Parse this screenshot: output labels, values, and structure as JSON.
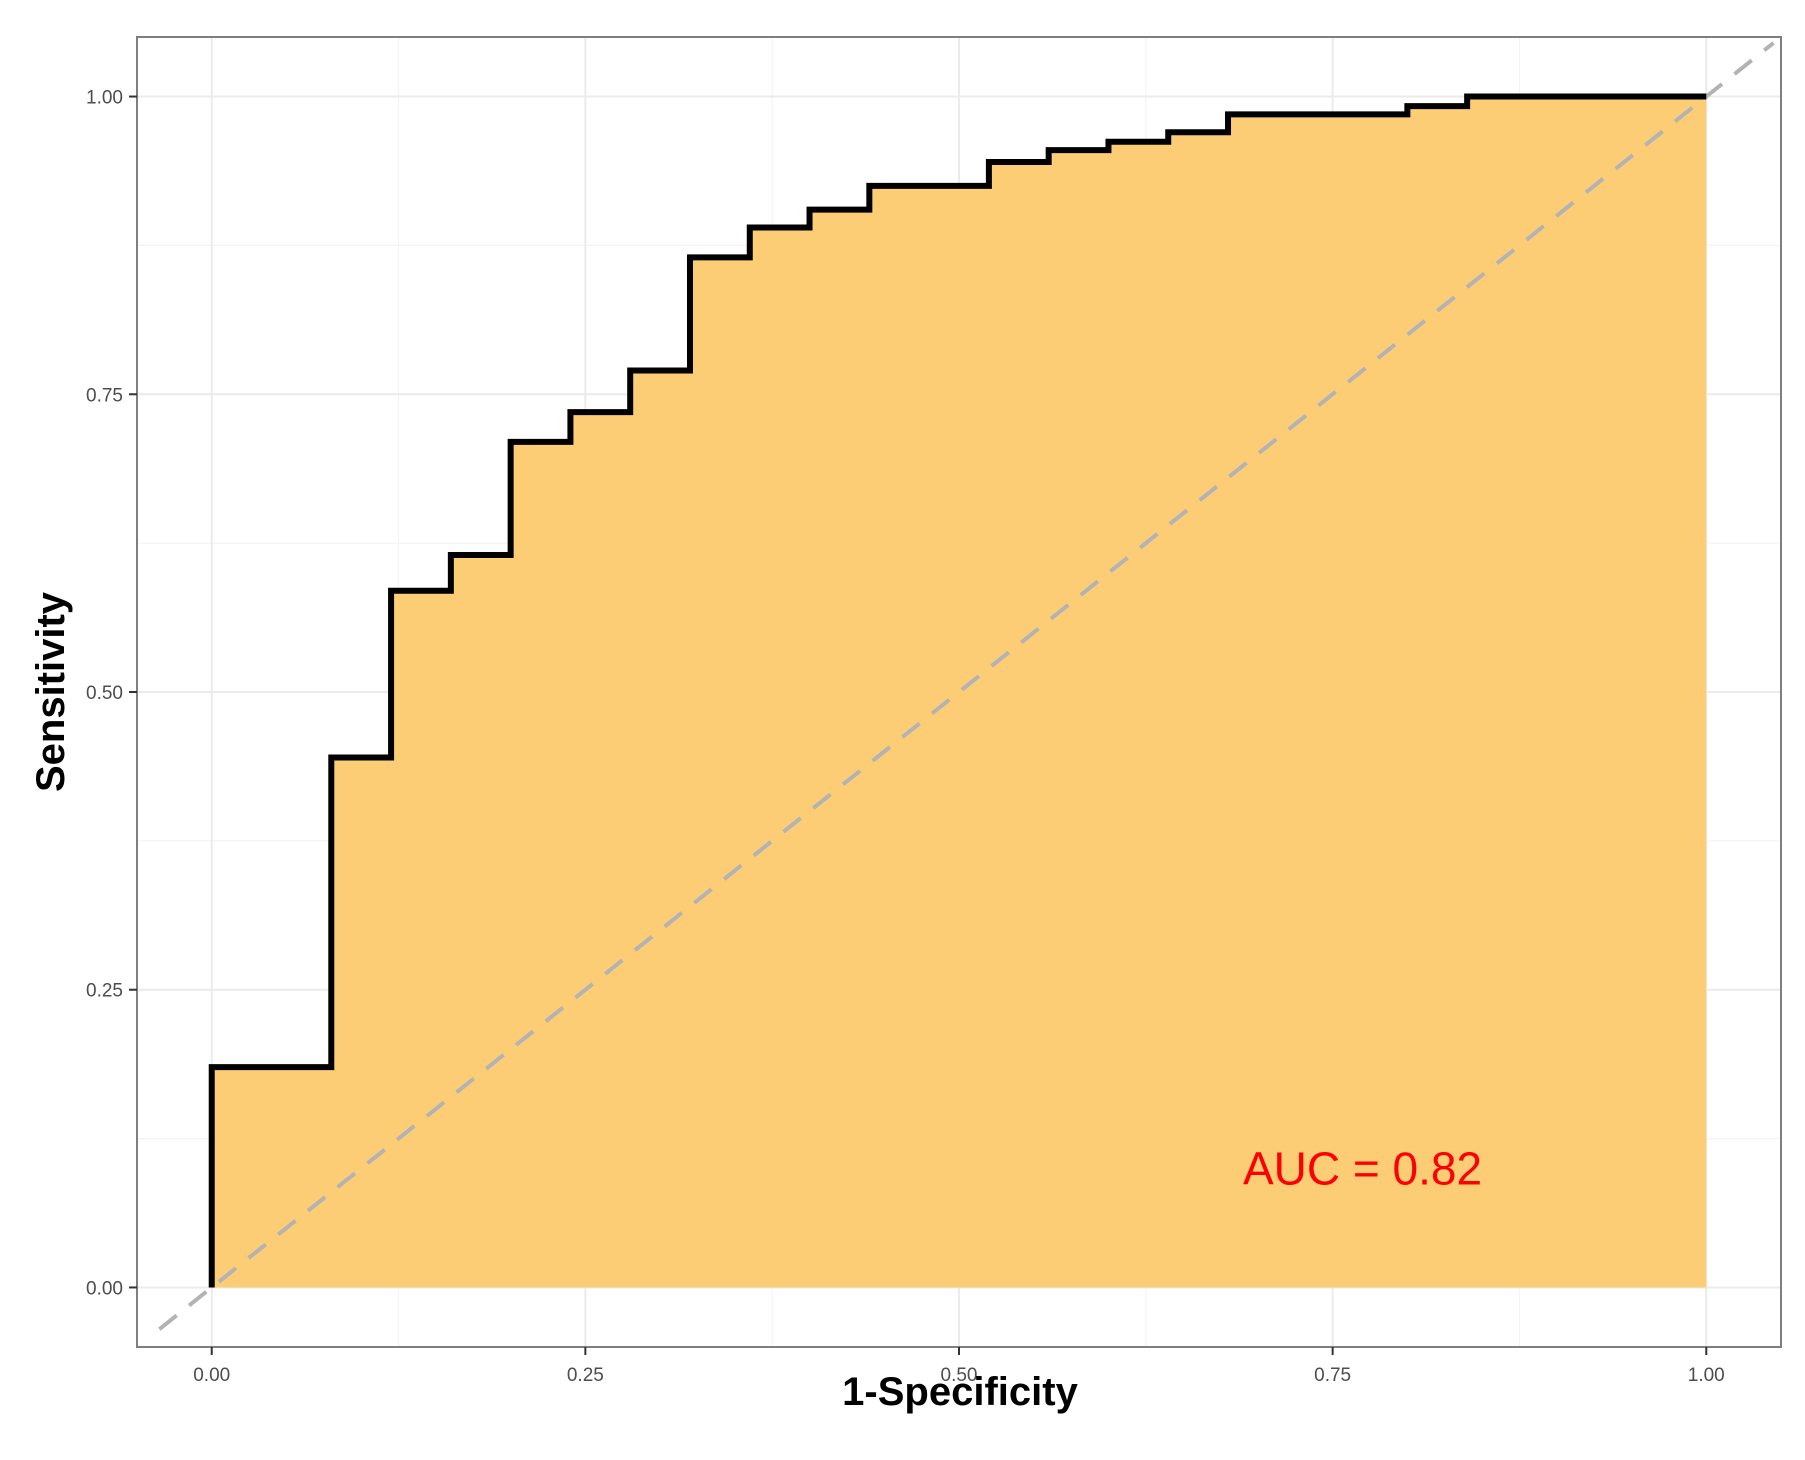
{
  "chart_data": {
    "type": "line",
    "title": "",
    "xlabel": "1-Specificity",
    "ylabel": "Sensitivity",
    "xlim": [
      -0.05,
      1.05
    ],
    "ylim": [
      -0.05,
      1.05
    ],
    "x_ticks": [
      0.0,
      0.25,
      0.5,
      0.75,
      1.0
    ],
    "x_tick_labels": [
      "0.00",
      "0.25",
      "0.50",
      "0.75",
      "1.00"
    ],
    "y_ticks": [
      0.0,
      0.25,
      0.5,
      0.75,
      1.0
    ],
    "y_tick_labels": [
      "0.00",
      "0.25",
      "0.50",
      "0.75",
      "1.00"
    ],
    "grid": true,
    "legend": "none",
    "series": [
      {
        "kind": "step",
        "fill": "area",
        "x": [
          0.0,
          0.0,
          0.08,
          0.08,
          0.12,
          0.12,
          0.16,
          0.16,
          0.2,
          0.2,
          0.24,
          0.24,
          0.28,
          0.28,
          0.32,
          0.32,
          0.36,
          0.36,
          0.4,
          0.4,
          0.44,
          0.44,
          0.52,
          0.52,
          0.56,
          0.56,
          0.6,
          0.6,
          0.64,
          0.64,
          0.68,
          0.68,
          0.8,
          0.8,
          0.84,
          0.84,
          1.0
        ],
        "y": [
          0.0,
          0.185,
          0.185,
          0.445,
          0.445,
          0.585,
          0.585,
          0.615,
          0.615,
          0.71,
          0.71,
          0.735,
          0.735,
          0.77,
          0.77,
          0.865,
          0.865,
          0.89,
          0.89,
          0.905,
          0.905,
          0.925,
          0.925,
          0.945,
          0.945,
          0.955,
          0.955,
          0.962,
          0.962,
          0.97,
          0.97,
          0.985,
          0.985,
          0.992,
          0.992,
          1.0,
          1.0
        ]
      },
      {
        "kind": "reference-diagonal",
        "style": "dashed",
        "x": [
          -0.035,
          1.045
        ],
        "y": [
          -0.035,
          1.045
        ]
      }
    ],
    "annotations": [
      {
        "text": "AUC = 0.82",
        "x": 0.69,
        "y": 0.1
      }
    ]
  },
  "colors": {
    "fill": "#fdcd76",
    "curve": "#000000",
    "diagonal": "#b3b3b3",
    "annotation": "#ff0000",
    "panel_border": "#7f7f7f",
    "grid_major": "#ebebeb",
    "grid_minor": "#f4f4f4"
  }
}
